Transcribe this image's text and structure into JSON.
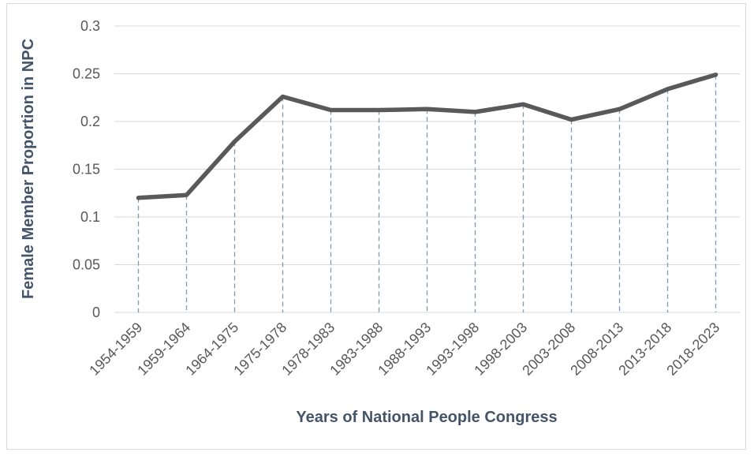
{
  "chart_data": {
    "type": "line",
    "title": "",
    "xlabel": "Years of National People Congress",
    "ylabel": "Female Member Proportion in NPC",
    "categories": [
      "1954-1959",
      "1959-1964",
      "1964-1975",
      "1975-1978",
      "1978-1983",
      "1983-1988",
      "1988-1993",
      "1993-1998",
      "1998-2003",
      "2003-2008",
      "2008-2013",
      "2013-2018",
      "2018-2023"
    ],
    "series": [
      {
        "values": [
          0.12,
          0.123,
          0.179,
          0.226,
          0.212,
          0.212,
          0.213,
          0.21,
          0.218,
          0.202,
          0.213,
          0.234,
          0.249
        ]
      }
    ],
    "ylim": [
      0,
      0.3
    ],
    "yticks": [
      "0",
      "0.05",
      "0.1",
      "0.15",
      "0.2",
      "0.25",
      "0.3"
    ],
    "grid": true,
    "drop_lines": true,
    "colors": {
      "line": "#595959",
      "grid": "#d9d9d9",
      "drop_line": "#8497b0",
      "tick_text": "#595959",
      "axis_title": "#44546a"
    }
  }
}
